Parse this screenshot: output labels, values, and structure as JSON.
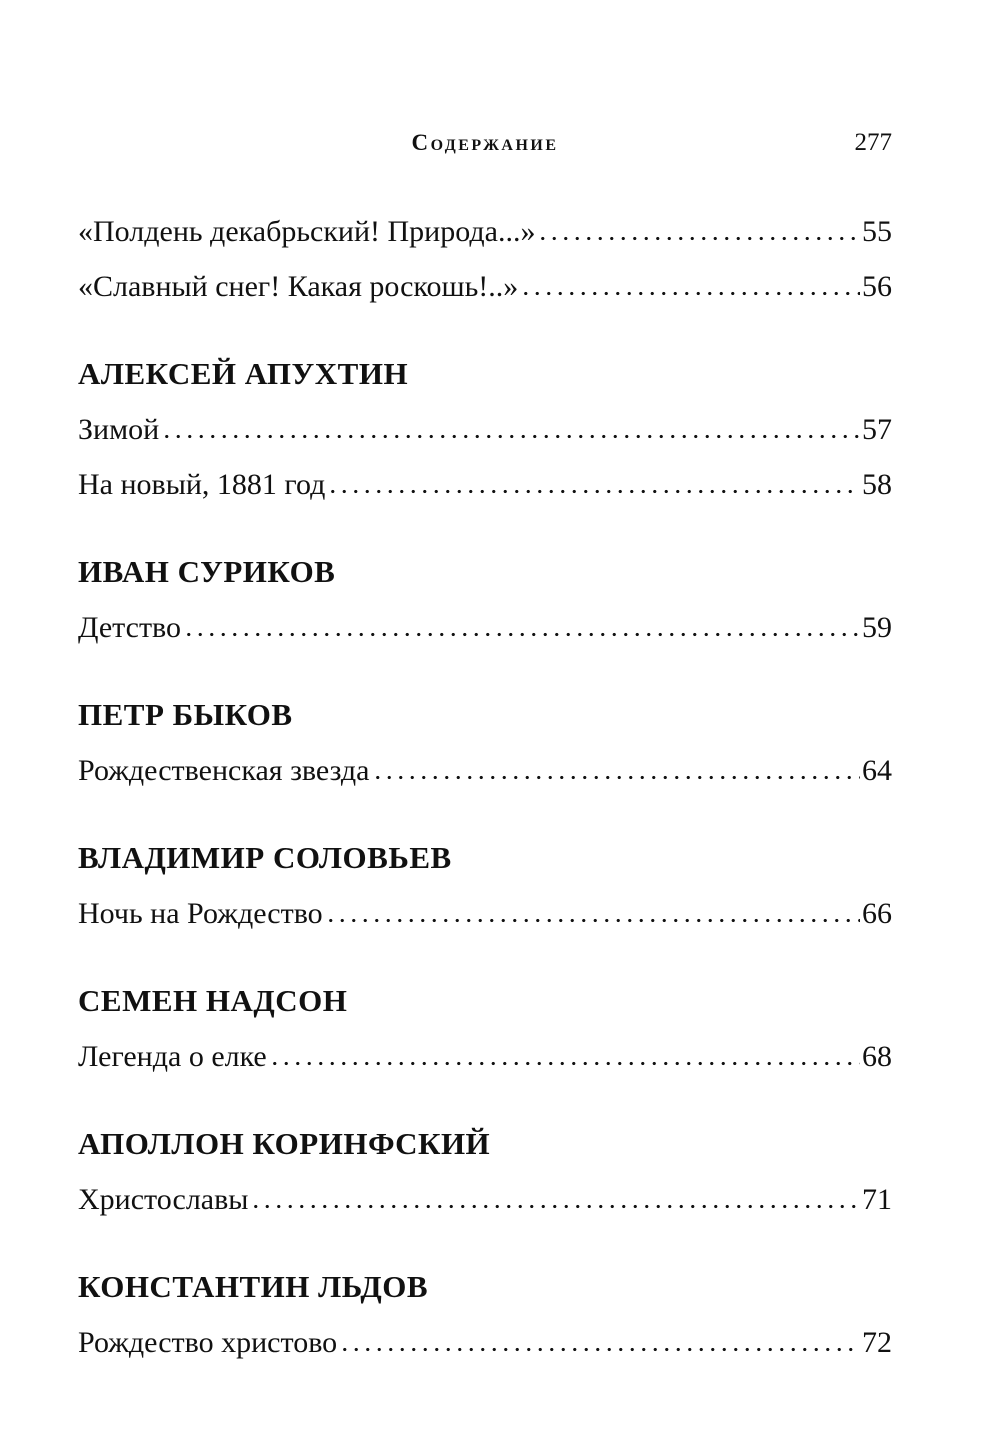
{
  "header": {
    "running_title": "Содержание",
    "page_number": "277"
  },
  "groups": [
    {
      "author": "",
      "entries": [
        {
          "title": "«Полдень декабрьский! Природа...»",
          "page": "55"
        },
        {
          "title": "«Славный снег! Какая роскошь!..»",
          "page": "56"
        }
      ]
    },
    {
      "author": "АЛЕКСЕЙ АПУХТИН",
      "entries": [
        {
          "title": "Зимой",
          "page": "57"
        },
        {
          "title": "На новый, 1881 год",
          "page": "58"
        }
      ]
    },
    {
      "author": "ИВАН СУРИКОВ",
      "entries": [
        {
          "title": "Детство",
          "page": "59"
        }
      ]
    },
    {
      "author": "ПЕТР БЫКОВ",
      "entries": [
        {
          "title": "Рождественская звезда",
          "page": "64"
        }
      ]
    },
    {
      "author": "ВЛАДИМИР СОЛОВЬЕВ",
      "entries": [
        {
          "title": "Ночь на Рождество",
          "page": "66"
        }
      ]
    },
    {
      "author": "СЕМЕН НАДСОН",
      "entries": [
        {
          "title": "Легенда о елке",
          "page": "68"
        }
      ]
    },
    {
      "author": "АПОЛЛОН КОРИНФСКИЙ",
      "entries": [
        {
          "title": "Христославы",
          "page": "71"
        }
      ]
    },
    {
      "author": "КОНСТАНТИН ЛЬДОВ",
      "entries": [
        {
          "title": "Рождество христово",
          "page": "72"
        }
      ]
    }
  ]
}
